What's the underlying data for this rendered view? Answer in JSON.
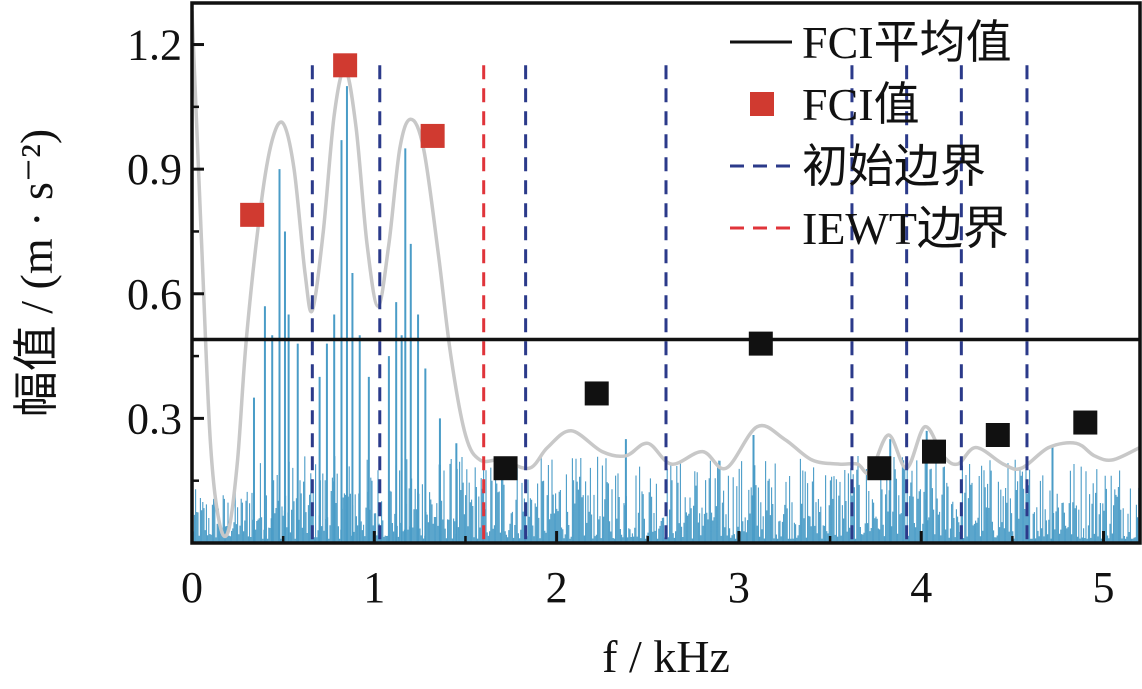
{
  "chart_data": {
    "type": "line",
    "xlabel": "f / kHz",
    "ylabel": "幅值 / (m · s⁻²)",
    "x_ticks": [
      "0",
      "1",
      "2",
      "3",
      "4",
      "5"
    ],
    "y_ticks": [
      "0.3",
      "0.6",
      "0.9",
      "1.2"
    ],
    "xlim": [
      0,
      5.2
    ],
    "ylim": [
      0,
      1.3
    ],
    "legend": {
      "placement": "top-right",
      "entries": [
        "FCI平均值",
        "FCI值",
        "初始边界",
        "IEWT边界"
      ]
    },
    "fci_mean": 0.49,
    "fci_values_red": [
      {
        "x": 0.33,
        "y": 0.79
      },
      {
        "x": 0.84,
        "y": 1.15
      },
      {
        "x": 1.32,
        "y": 0.98
      }
    ],
    "fci_values_black": [
      {
        "x": 1.72,
        "y": 0.18
      },
      {
        "x": 2.22,
        "y": 0.36
      },
      {
        "x": 3.12,
        "y": 0.48
      },
      {
        "x": 3.77,
        "y": 0.18
      },
      {
        "x": 4.07,
        "y": 0.22
      },
      {
        "x": 4.42,
        "y": 0.26
      },
      {
        "x": 4.9,
        "y": 0.29
      }
    ],
    "initial_boundaries": [
      0.66,
      1.03,
      1.83,
      2.6,
      3.62,
      3.92,
      4.22,
      4.58
    ],
    "iewt_boundaries": [
      1.6
    ],
    "envelope": [
      {
        "x": 0.0,
        "y": 1.28
      },
      {
        "x": 0.05,
        "y": 0.75
      },
      {
        "x": 0.1,
        "y": 0.25
      },
      {
        "x": 0.15,
        "y": 0.05
      },
      {
        "x": 0.2,
        "y": 0.03
      },
      {
        "x": 0.25,
        "y": 0.2
      },
      {
        "x": 0.3,
        "y": 0.5
      },
      {
        "x": 0.38,
        "y": 0.82
      },
      {
        "x": 0.44,
        "y": 0.97
      },
      {
        "x": 0.5,
        "y": 1.01
      },
      {
        "x": 0.56,
        "y": 0.9
      },
      {
        "x": 0.62,
        "y": 0.65
      },
      {
        "x": 0.66,
        "y": 0.56
      },
      {
        "x": 0.72,
        "y": 0.75
      },
      {
        "x": 0.78,
        "y": 1.03
      },
      {
        "x": 0.84,
        "y": 1.14
      },
      {
        "x": 0.9,
        "y": 1.0
      },
      {
        "x": 0.96,
        "y": 0.72
      },
      {
        "x": 1.02,
        "y": 0.57
      },
      {
        "x": 1.08,
        "y": 0.72
      },
      {
        "x": 1.14,
        "y": 0.95
      },
      {
        "x": 1.2,
        "y": 1.02
      },
      {
        "x": 1.27,
        "y": 0.95
      },
      {
        "x": 1.35,
        "y": 0.7
      },
      {
        "x": 1.42,
        "y": 0.45
      },
      {
        "x": 1.5,
        "y": 0.26
      },
      {
        "x": 1.58,
        "y": 0.2
      },
      {
        "x": 1.7,
        "y": 0.2
      },
      {
        "x": 1.85,
        "y": 0.18
      },
      {
        "x": 1.95,
        "y": 0.23
      },
      {
        "x": 2.08,
        "y": 0.27
      },
      {
        "x": 2.25,
        "y": 0.22
      },
      {
        "x": 2.38,
        "y": 0.21
      },
      {
        "x": 2.5,
        "y": 0.24
      },
      {
        "x": 2.63,
        "y": 0.19
      },
      {
        "x": 2.8,
        "y": 0.22
      },
      {
        "x": 2.93,
        "y": 0.18
      },
      {
        "x": 3.1,
        "y": 0.28
      },
      {
        "x": 3.25,
        "y": 0.25
      },
      {
        "x": 3.4,
        "y": 0.2
      },
      {
        "x": 3.55,
        "y": 0.19
      },
      {
        "x": 3.65,
        "y": 0.19
      },
      {
        "x": 3.72,
        "y": 0.17
      },
      {
        "x": 3.82,
        "y": 0.26
      },
      {
        "x": 3.92,
        "y": 0.18
      },
      {
        "x": 4.02,
        "y": 0.28
      },
      {
        "x": 4.12,
        "y": 0.21
      },
      {
        "x": 4.2,
        "y": 0.19
      },
      {
        "x": 4.3,
        "y": 0.23
      },
      {
        "x": 4.45,
        "y": 0.19
      },
      {
        "x": 4.55,
        "y": 0.18
      },
      {
        "x": 4.7,
        "y": 0.23
      },
      {
        "x": 4.85,
        "y": 0.24
      },
      {
        "x": 4.95,
        "y": 0.21
      },
      {
        "x": 5.05,
        "y": 0.2
      },
      {
        "x": 5.2,
        "y": 0.23
      }
    ],
    "spectrum_peaks": [
      {
        "x": 0.34,
        "y": 0.35
      },
      {
        "x": 0.4,
        "y": 0.57
      },
      {
        "x": 0.44,
        "y": 0.5
      },
      {
        "x": 0.48,
        "y": 0.9
      },
      {
        "x": 0.51,
        "y": 0.75
      },
      {
        "x": 0.53,
        "y": 0.55
      },
      {
        "x": 0.58,
        "y": 0.48
      },
      {
        "x": 0.7,
        "y": 0.4
      },
      {
        "x": 0.74,
        "y": 0.48
      },
      {
        "x": 0.78,
        "y": 0.55
      },
      {
        "x": 0.82,
        "y": 0.97
      },
      {
        "x": 0.85,
        "y": 1.1
      },
      {
        "x": 0.88,
        "y": 0.65
      },
      {
        "x": 0.92,
        "y": 0.5
      },
      {
        "x": 0.97,
        "y": 0.4
      },
      {
        "x": 1.08,
        "y": 0.45
      },
      {
        "x": 1.12,
        "y": 0.58
      },
      {
        "x": 1.15,
        "y": 0.5
      },
      {
        "x": 1.17,
        "y": 0.95
      },
      {
        "x": 1.2,
        "y": 0.72
      },
      {
        "x": 1.24,
        "y": 0.55
      },
      {
        "x": 1.28,
        "y": 0.42
      },
      {
        "x": 1.36,
        "y": 0.3
      },
      {
        "x": 1.45,
        "y": 0.24
      },
      {
        "x": 2.38,
        "y": 0.25
      },
      {
        "x": 3.08,
        "y": 0.26
      },
      {
        "x": 3.83,
        "y": 0.25
      },
      {
        "x": 4.03,
        "y": 0.27
      },
      {
        "x": 4.72,
        "y": 0.23
      }
    ],
    "colors": {
      "spectrum": "#4a9cc7",
      "envelope": "#c8c8c8",
      "mean_line": "#111111",
      "fci_red": "#d03a30",
      "fci_black": "#111111",
      "initial_boundary": "#2b3a8a",
      "iewt_boundary": "#e0343a"
    }
  }
}
